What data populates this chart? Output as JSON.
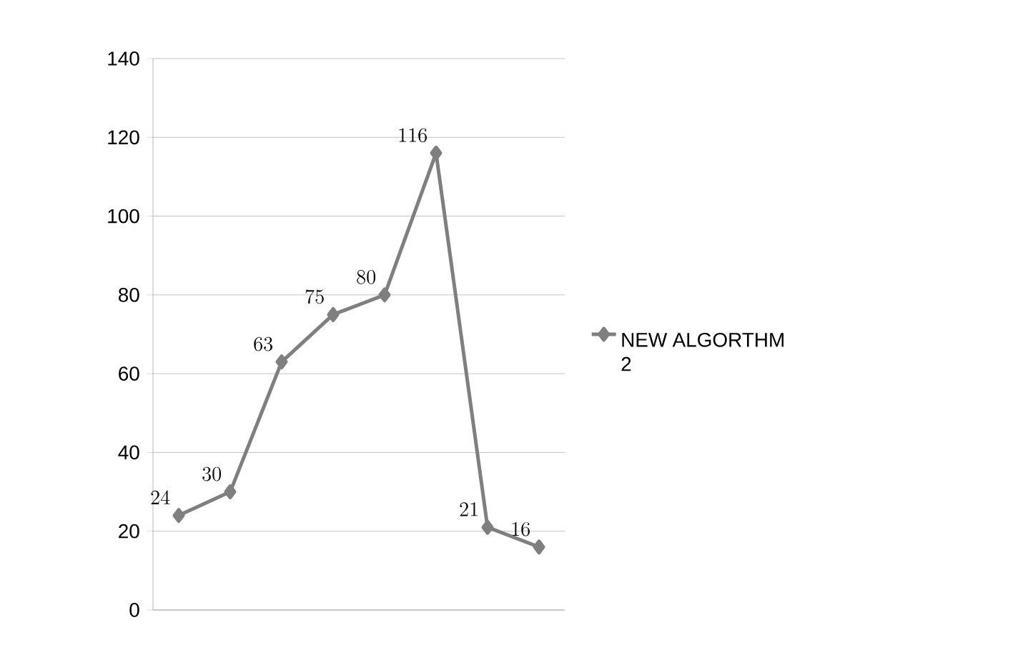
{
  "chart_data": {
    "type": "line",
    "categories": [
      null,
      null,
      null,
      null,
      null,
      null,
      null,
      null
    ],
    "series": [
      {
        "name": "NEW ALGORTHM 2",
        "color": "#7f7f7f",
        "values": [
          24,
          30,
          63,
          75,
          80,
          116,
          21,
          16
        ]
      }
    ],
    "ylim": [
      0,
      140
    ],
    "yticks": [
      0,
      20,
      40,
      60,
      80,
      100,
      120,
      140
    ],
    "grid": "y",
    "legend": "right",
    "marker": "diamond",
    "data_labels": true
  }
}
